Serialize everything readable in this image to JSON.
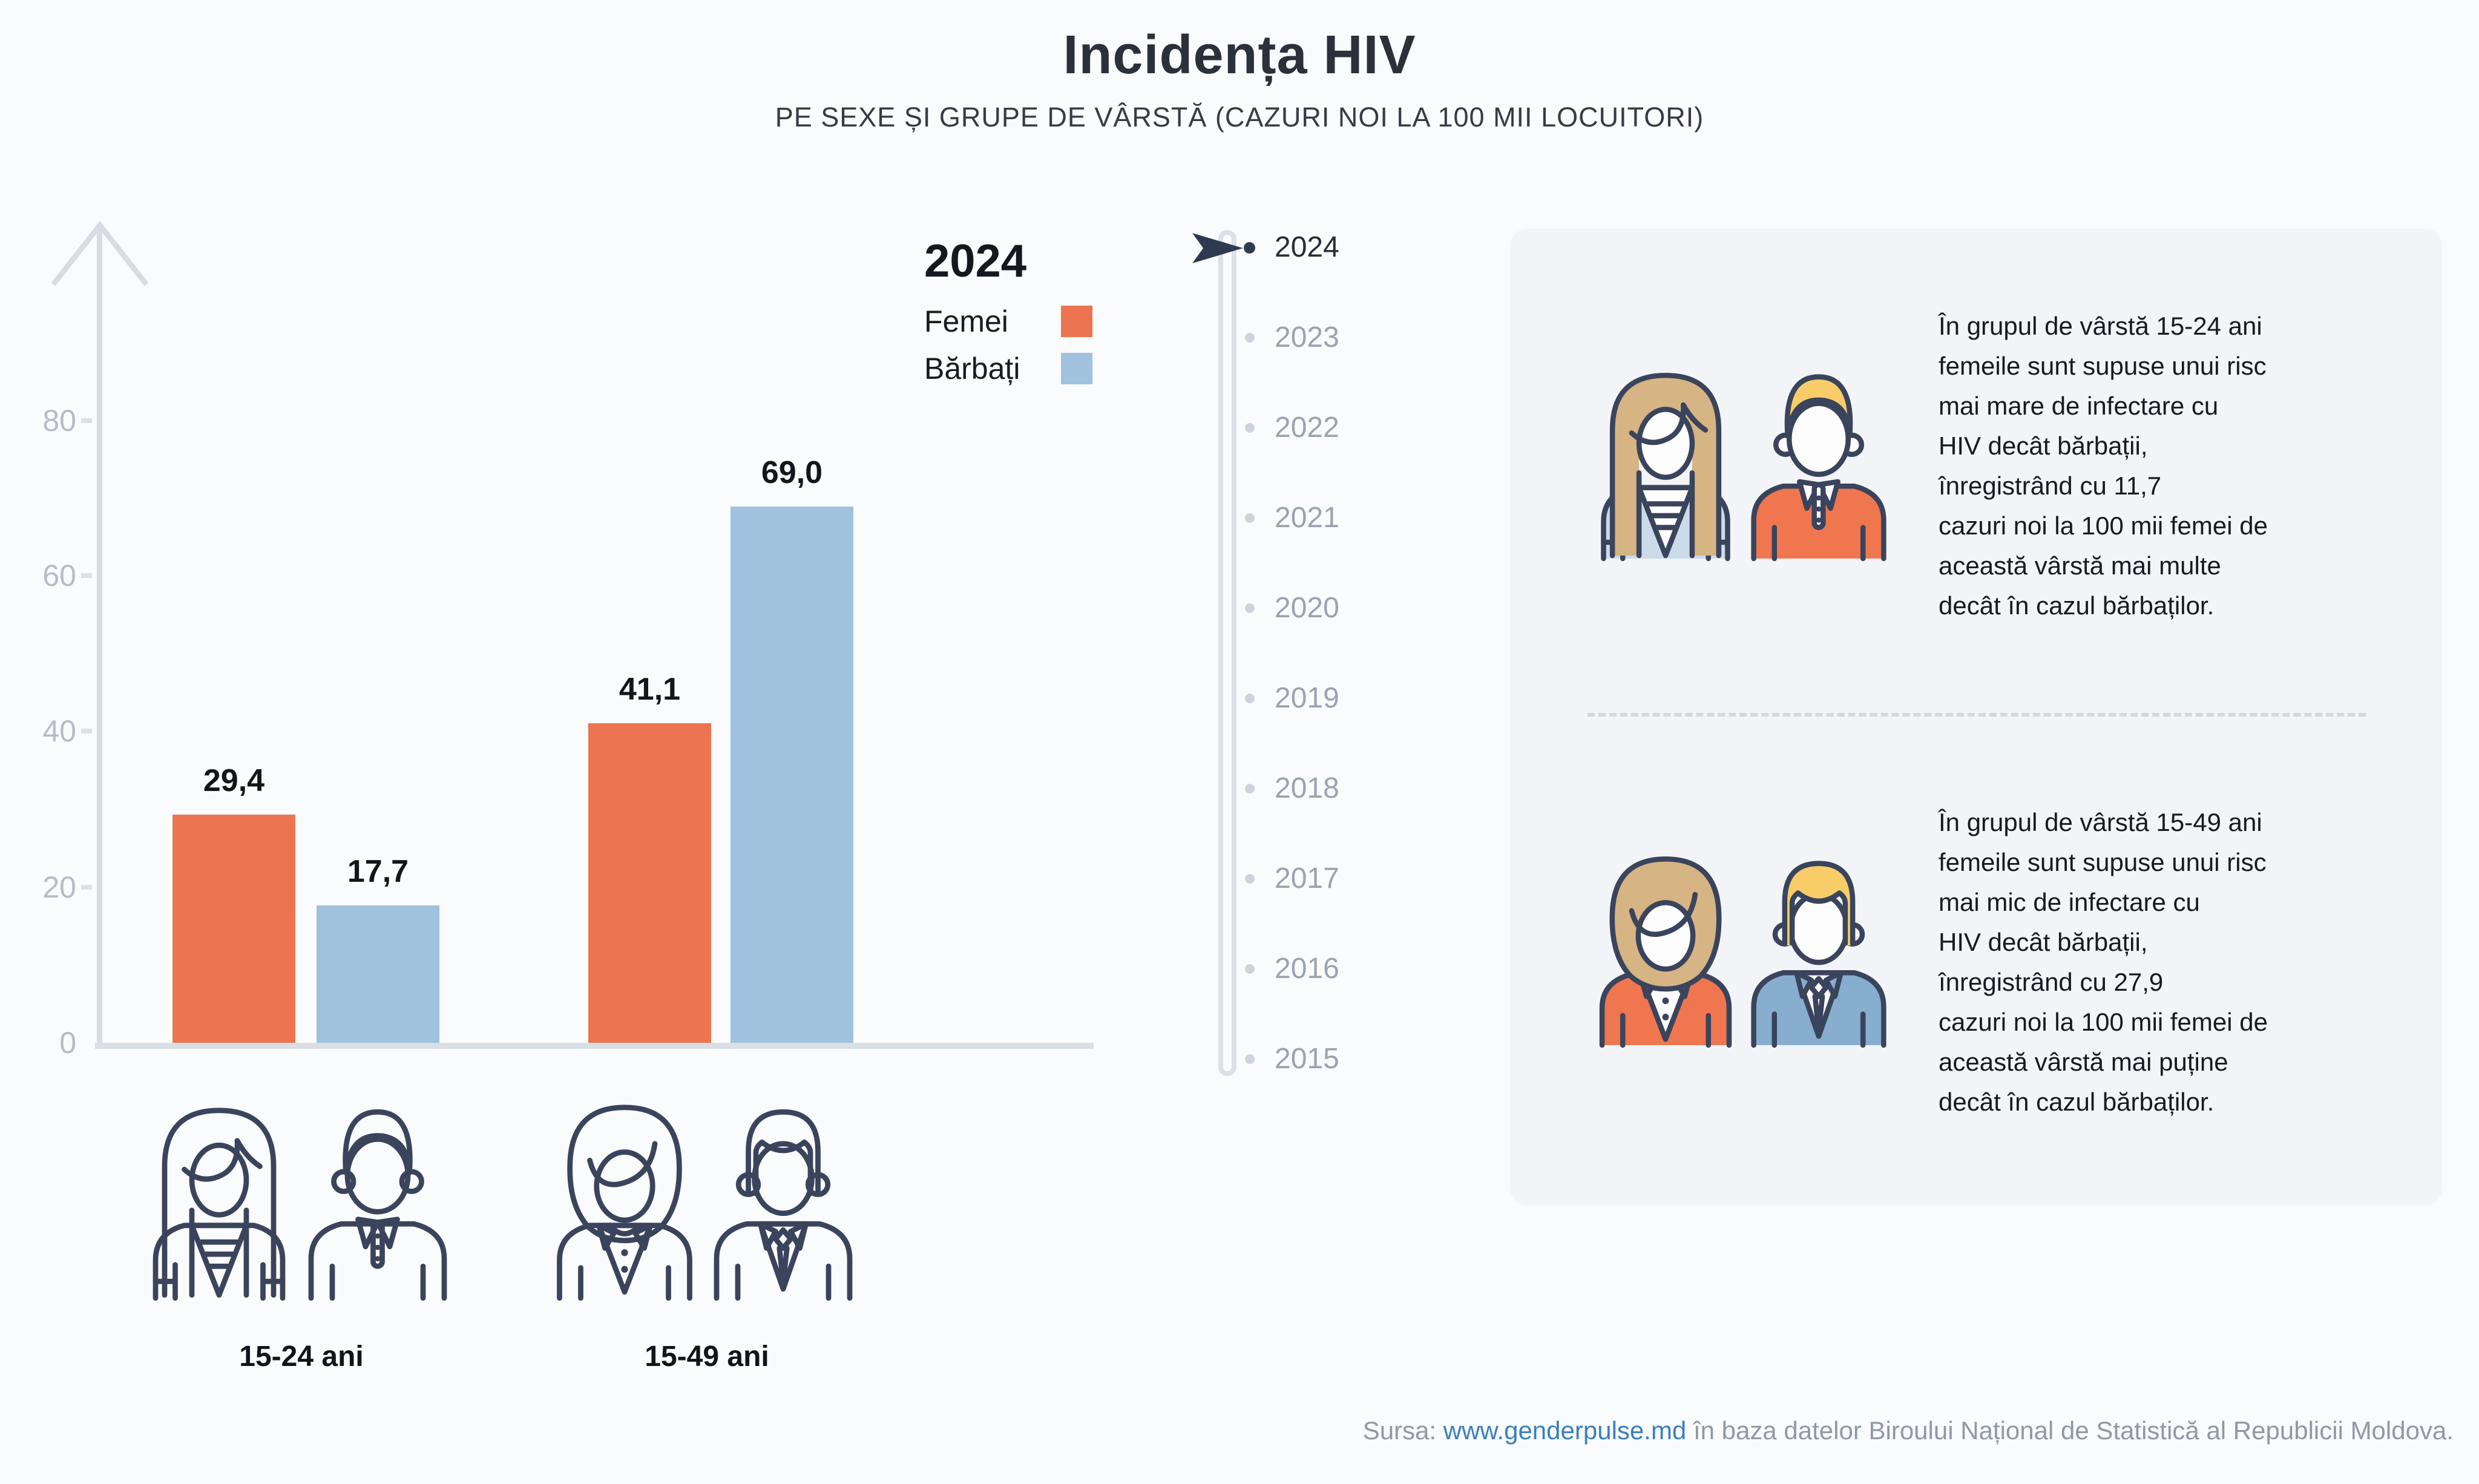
{
  "header": {
    "title": "Incidența HIV",
    "subtitle": "PE SEXE ȘI GRUPE DE VÂRSTĂ (CAZURI NOI LA 100 MII LOCUITORI)"
  },
  "legend": {
    "year": "2024",
    "items": [
      {
        "label": "Femei",
        "color": "#ED7450"
      },
      {
        "label": "Bărbați",
        "color": "#A0C2DE"
      }
    ]
  },
  "chart_data": {
    "type": "bar",
    "title": "Incidența HIV",
    "subtitle": "PE SEXE ȘI GRUPE DE VÂRSTĂ (CAZURI NOI LA 100 MII LOCUITORI)",
    "year": "2024",
    "categories": [
      "15-24 ani",
      "15-49 ani"
    ],
    "series": [
      {
        "name": "Femei",
        "color": "#ED7450",
        "values": [
          29.4,
          41.1
        ],
        "labels": [
          "29,4",
          "41,1"
        ]
      },
      {
        "name": "Bărbați",
        "color": "#A0C2DE",
        "values": [
          17.7,
          69.0
        ],
        "labels": [
          "17,7",
          "69,0"
        ]
      }
    ],
    "ylabel": "",
    "xlabel": "",
    "ylim": [
      0,
      100
    ],
    "yticks": [
      0,
      20,
      40,
      60,
      80
    ],
    "grid": false,
    "legend_position": "top-right"
  },
  "timeline": {
    "selected": "2024",
    "years": [
      "2024",
      "2023",
      "2022",
      "2021",
      "2020",
      "2019",
      "2018",
      "2017",
      "2016",
      "2015"
    ]
  },
  "panel": {
    "top_text": "În grupul de vârstă 15-24 ani\nfemeile sunt supuse unui risc\nmai mare de infectare cu\n HIV decât bărbații,\n înregistrând cu 11,7\ncazuri noi la 100 mii femei de\naceastă vârstă mai multe\ndecât în cazul bărbaților.",
    "bottom_text": "În grupul de vârstă 15-49 ani\nfemeile sunt supuse unui risc\nmai mic de infectare cu\n HIV decât bărbații,\n înregistrând cu 27,9\ncazuri noi la 100 mii femei de\naceastă vârstă mai puține\ndecât în cazul bărbaților."
  },
  "footer": {
    "prefix": "Sursa: ",
    "link": "www.genderpulse.md",
    "suffix": " în baza datelor Biroului Național de Statistică al Republicii Moldova."
  }
}
